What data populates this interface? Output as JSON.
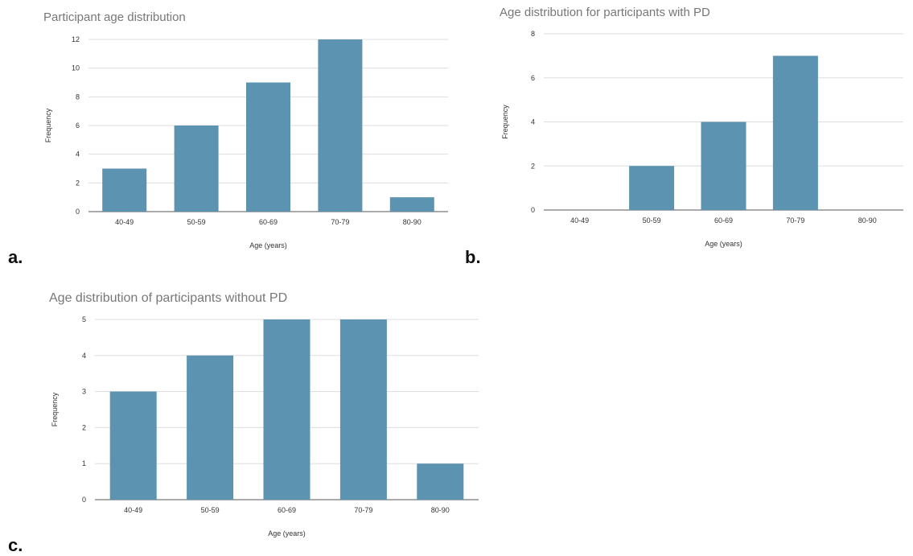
{
  "panels": [
    {
      "letter": "a."
    },
    {
      "letter": "b."
    },
    {
      "letter": "c."
    }
  ],
  "chart_data": [
    {
      "type": "bar",
      "title": "Participant age distribution",
      "categories": [
        "40-49",
        "50-59",
        "60-69",
        "70-79",
        "80-90"
      ],
      "values": [
        3,
        6,
        9,
        12,
        1
      ],
      "xlabel": "Age (years)",
      "ylabel": "Frequency",
      "ylim": [
        0,
        12
      ],
      "yticks": [
        0,
        2,
        4,
        6,
        8,
        10,
        12
      ],
      "grid": true,
      "legend": "none",
      "color": "#5b93b0"
    },
    {
      "type": "bar",
      "title": "Age distribution for participants with PD",
      "categories": [
        "40-49",
        "50-59",
        "60-69",
        "70-79",
        "80-90"
      ],
      "values": [
        0,
        2,
        4,
        7,
        0
      ],
      "xlabel": "Age (years)",
      "ylabel": "Frequency",
      "ylim": [
        0,
        8
      ],
      "yticks": [
        0,
        2,
        4,
        6,
        8
      ],
      "grid": true,
      "legend": "none",
      "color": "#5b93b0"
    },
    {
      "type": "bar",
      "title": "Age distribution of participants without PD",
      "categories": [
        "40-49",
        "50-59",
        "60-69",
        "70-79",
        "80-90"
      ],
      "values": [
        3,
        4,
        5,
        5,
        1
      ],
      "xlabel": "Age (years)",
      "ylabel": "Frequency",
      "ylim": [
        0,
        5
      ],
      "yticks": [
        0,
        1,
        2,
        3,
        4,
        5
      ],
      "grid": true,
      "legend": "none",
      "color": "#5b93b0"
    }
  ]
}
